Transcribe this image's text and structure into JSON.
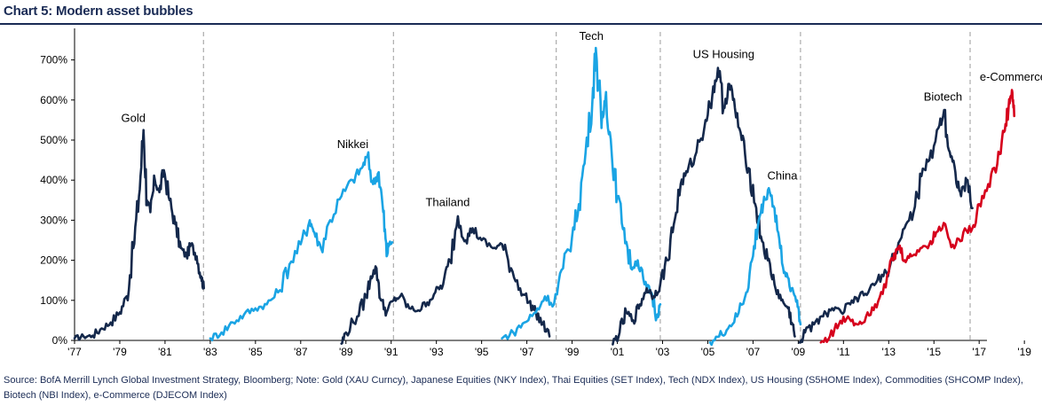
{
  "chart_data": {
    "type": "line",
    "title": "Chart 5: Modern asset bubbles",
    "xlabel": "",
    "ylabel": "",
    "xlim": [
      1977,
      2019.5
    ],
    "ylim": [
      0,
      750
    ],
    "x_ticks": [
      1977,
      1979,
      1981,
      1983,
      1985,
      1987,
      1989,
      1991,
      1993,
      1995,
      1997,
      1999,
      2001,
      2003,
      2005,
      2007,
      2009,
      2011,
      2013,
      2015,
      2017,
      2019
    ],
    "x_tick_labels": [
      "'77",
      "'79",
      "'81",
      "'83",
      "'85",
      "'87",
      "'89",
      "'91",
      "'93",
      "'95",
      "'97",
      "'99",
      "'01",
      "'03",
      "'05",
      "'07",
      "'09",
      "'11",
      "'13",
      "'15",
      "'17",
      "'19"
    ],
    "y_ticks": [
      0,
      100,
      200,
      300,
      400,
      500,
      600,
      700
    ],
    "y_tick_labels": [
      "0%",
      "100%",
      "200%",
      "300%",
      "400%",
      "500%",
      "600%",
      "700%"
    ],
    "grid": false,
    "dividers": [
      1982.7,
      1991.1,
      1998.3,
      2002.9,
      2009.1,
      2016.6
    ],
    "series": [
      {
        "name": "Gold",
        "color": "#14284b",
        "points": [
          [
            1977,
            5
          ],
          [
            1977.4,
            10
          ],
          [
            1977.8,
            12
          ],
          [
            1978.2,
            30
          ],
          [
            1978.6,
            45
          ],
          [
            1979,
            70
          ],
          [
            1979.3,
            110
          ],
          [
            1979.6,
            230
          ],
          [
            1979.85,
            360
          ],
          [
            1980.05,
            525
          ],
          [
            1980.2,
            350
          ],
          [
            1980.35,
            320
          ],
          [
            1980.55,
            400
          ],
          [
            1980.75,
            370
          ],
          [
            1980.95,
            425
          ],
          [
            1981.2,
            350
          ],
          [
            1981.45,
            290
          ],
          [
            1981.7,
            230
          ],
          [
            1981.95,
            210
          ],
          [
            1982.15,
            240
          ],
          [
            1982.4,
            210
          ],
          [
            1982.6,
            160
          ],
          [
            1982.72,
            130
          ]
        ]
      },
      {
        "name": "Nikkei",
        "color": "#1aa4e4",
        "points": [
          [
            1983,
            5
          ],
          [
            1983.5,
            20
          ],
          [
            1984,
            45
          ],
          [
            1984.5,
            65
          ],
          [
            1985,
            80
          ],
          [
            1985.5,
            90
          ],
          [
            1986,
            120
          ],
          [
            1986.5,
            190
          ],
          [
            1987,
            240
          ],
          [
            1987.4,
            300
          ],
          [
            1987.6,
            270
          ],
          [
            1987.9,
            230
          ],
          [
            1988.3,
            300
          ],
          [
            1988.8,
            360
          ],
          [
            1989.3,
            400
          ],
          [
            1989.7,
            430
          ],
          [
            1989.95,
            460
          ],
          [
            1990.2,
            390
          ],
          [
            1990.45,
            420
          ],
          [
            1990.65,
            320
          ],
          [
            1990.8,
            210
          ],
          [
            1990.9,
            240
          ],
          [
            1991.05,
            245
          ]
        ]
      },
      {
        "name": "Thailand",
        "color": "#14284b",
        "points": [
          [
            1988.8,
            -8
          ],
          [
            1989,
            20
          ],
          [
            1989.5,
            60
          ],
          [
            1989.9,
            110
          ],
          [
            1990.1,
            160
          ],
          [
            1990.35,
            180
          ],
          [
            1990.55,
            100
          ],
          [
            1990.8,
            70
          ],
          [
            1991.1,
            100
          ],
          [
            1991.4,
            110
          ],
          [
            1991.8,
            80
          ],
          [
            1992.2,
            75
          ],
          [
            1992.6,
            95
          ],
          [
            1992.95,
            120
          ],
          [
            1993.3,
            140
          ],
          [
            1993.6,
            200
          ],
          [
            1993.95,
            310
          ],
          [
            1994.3,
            250
          ],
          [
            1994.6,
            280
          ],
          [
            1995,
            250
          ],
          [
            1995.5,
            230
          ],
          [
            1995.9,
            240
          ],
          [
            1996.3,
            180
          ],
          [
            1996.7,
            130
          ],
          [
            1997.1,
            95
          ],
          [
            1997.4,
            70
          ],
          [
            1997.7,
            40
          ],
          [
            1998.0,
            10
          ]
        ]
      },
      {
        "name": "Tech",
        "color": "#1aa4e4",
        "points": [
          [
            1995.9,
            5
          ],
          [
            1996.4,
            20
          ],
          [
            1996.9,
            45
          ],
          [
            1997.4,
            70
          ],
          [
            1997.8,
            110
          ],
          [
            1998.2,
            90
          ],
          [
            1998.6,
            180
          ],
          [
            1999.0,
            260
          ],
          [
            1999.3,
            340
          ],
          [
            1999.6,
            470
          ],
          [
            1999.9,
            600
          ],
          [
            2000.05,
            730
          ],
          [
            2000.3,
            530
          ],
          [
            2000.5,
            620
          ],
          [
            2000.75,
            470
          ],
          [
            2001,
            360
          ],
          [
            2001.3,
            280
          ],
          [
            2001.6,
            180
          ],
          [
            2001.9,
            200
          ],
          [
            2002.2,
            140
          ],
          [
            2002.5,
            120
          ],
          [
            2002.75,
            60
          ],
          [
            2002.9,
            90
          ]
        ]
      },
      {
        "name": "US Housing",
        "color": "#14284b",
        "points": [
          [
            2000.8,
            -10
          ],
          [
            2001.1,
            20
          ],
          [
            2001.4,
            70
          ],
          [
            2001.7,
            50
          ],
          [
            2002.0,
            90
          ],
          [
            2002.3,
            130
          ],
          [
            2002.6,
            110
          ],
          [
            2002.9,
            140
          ],
          [
            2003.2,
            200
          ],
          [
            2003.5,
            290
          ],
          [
            2003.8,
            390
          ],
          [
            2004.1,
            420
          ],
          [
            2004.5,
            470
          ],
          [
            2004.9,
            550
          ],
          [
            2005.2,
            610
          ],
          [
            2005.45,
            680
          ],
          [
            2005.7,
            580
          ],
          [
            2005.95,
            640
          ],
          [
            2006.2,
            580
          ],
          [
            2006.5,
            500
          ],
          [
            2006.8,
            430
          ],
          [
            2007.1,
            340
          ],
          [
            2007.35,
            260
          ],
          [
            2007.65,
            200
          ],
          [
            2007.95,
            140
          ],
          [
            2008.25,
            100
          ],
          [
            2008.55,
            80
          ],
          [
            2008.75,
            40
          ],
          [
            2008.85,
            10
          ]
        ]
      },
      {
        "name": "China",
        "color": "#1aa4e4",
        "points": [
          [
            2005.1,
            -5
          ],
          [
            2005.5,
            10
          ],
          [
            2005.9,
            30
          ],
          [
            2006.3,
            60
          ],
          [
            2006.7,
            120
          ],
          [
            2007.0,
            210
          ],
          [
            2007.25,
            300
          ],
          [
            2007.45,
            340
          ],
          [
            2007.7,
            380
          ],
          [
            2007.95,
            330
          ],
          [
            2008.2,
            230
          ],
          [
            2008.45,
            160
          ],
          [
            2008.7,
            130
          ],
          [
            2008.95,
            100
          ],
          [
            2009.1,
            40
          ]
        ]
      },
      {
        "name": "Biotech",
        "color": "#14284b",
        "points": [
          [
            2009.05,
            -5
          ],
          [
            2009.3,
            20
          ],
          [
            2009.7,
            40
          ],
          [
            2010.1,
            60
          ],
          [
            2010.5,
            80
          ],
          [
            2010.9,
            70
          ],
          [
            2011.3,
            90
          ],
          [
            2011.7,
            110
          ],
          [
            2012.1,
            120
          ],
          [
            2012.5,
            150
          ],
          [
            2012.9,
            170
          ],
          [
            2013.3,
            220
          ],
          [
            2013.7,
            280
          ],
          [
            2014.1,
            320
          ],
          [
            2014.45,
            410
          ],
          [
            2014.8,
            450
          ],
          [
            2015.2,
            530
          ],
          [
            2015.45,
            575
          ],
          [
            2015.7,
            470
          ],
          [
            2015.95,
            420
          ],
          [
            2016.2,
            360
          ],
          [
            2016.45,
            400
          ],
          [
            2016.7,
            330
          ]
        ]
      },
      {
        "name": "e-Commerce",
        "color": "#d6001c",
        "points": [
          [
            2010,
            -5
          ],
          [
            2010.4,
            10
          ],
          [
            2010.8,
            40
          ],
          [
            2011.2,
            60
          ],
          [
            2011.6,
            40
          ],
          [
            2012.0,
            60
          ],
          [
            2012.4,
            90
          ],
          [
            2012.8,
            140
          ],
          [
            2013.2,
            200
          ],
          [
            2013.45,
            235
          ],
          [
            2013.7,
            200
          ],
          [
            2014.0,
            210
          ],
          [
            2014.4,
            230
          ],
          [
            2014.8,
            240
          ],
          [
            2015.1,
            270
          ],
          [
            2015.5,
            290
          ],
          [
            2015.9,
            230
          ],
          [
            2016.3,
            270
          ],
          [
            2016.7,
            280
          ],
          [
            2017.0,
            340
          ],
          [
            2017.4,
            390
          ],
          [
            2017.8,
            440
          ],
          [
            2018.1,
            520
          ],
          [
            2018.3,
            580
          ],
          [
            2018.45,
            625
          ],
          [
            2018.55,
            560
          ]
        ]
      }
    ],
    "annotations": [
      {
        "text": "Gold",
        "x": 1979.6,
        "y": 545
      },
      {
        "text": "Nikkei",
        "x": 1989.3,
        "y": 480
      },
      {
        "text": "Thailand",
        "x": 1993.5,
        "y": 335
      },
      {
        "text": "Tech",
        "x": 1999.85,
        "y": 750
      },
      {
        "text": "US Housing",
        "x": 2005.7,
        "y": 705
      },
      {
        "text": "China",
        "x": 2008.3,
        "y": 402
      },
      {
        "text": "Biotech",
        "x": 2015.4,
        "y": 598
      },
      {
        "text": "e-Commerce",
        "x": 2018.5,
        "y": 648
      }
    ]
  },
  "footer": {
    "source": "Source:  BofA Merrill Lynch Global Investment Strategy, Bloomberg; Note: Gold (XAU Curncy), Japanese Equities (NKY Index), Thai Equities (SET Index), Tech (NDX Index), US Housing (S5HOME Index), Commodities (SHCOMP Index), Biotech (NBI Index), e-Commerce (DJECOM Index)"
  }
}
